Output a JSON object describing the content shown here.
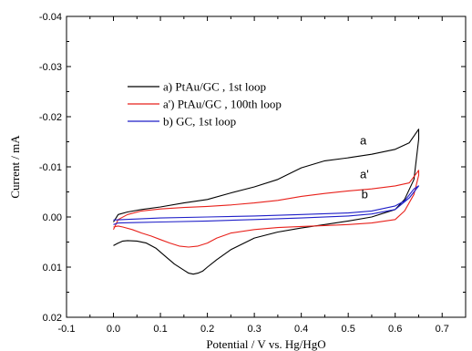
{
  "chart_data": {
    "type": "line",
    "xlabel": "Potential / V vs. Hg/HgO",
    "ylabel": "Current / mA",
    "xlim": [
      -0.1,
      0.75
    ],
    "ylim": [
      0.02,
      -0.04
    ],
    "y_axis_inverted": true,
    "xticks": [
      "-0.1",
      "0.0",
      "0.1",
      "0.2",
      "0.3",
      "0.4",
      "0.5",
      "0.6",
      "0.7"
    ],
    "yticks": [
      "-0.04",
      "-0.03",
      "-0.02",
      "-0.01",
      "0.00",
      "0.01",
      "0.02"
    ],
    "xtick_values": [
      -0.1,
      0.0,
      0.1,
      0.2,
      0.3,
      0.4,
      0.5,
      0.6,
      0.7
    ],
    "ytick_values": [
      -0.04,
      -0.03,
      -0.02,
      -0.01,
      0.0,
      0.01,
      0.02
    ],
    "grid": false,
    "legend_placement": "top-left",
    "series": [
      {
        "name": "a) PtAu/GC , 1st loop",
        "label": "a",
        "color": "#000000",
        "x": [
          0.0,
          0.01,
          0.03,
          0.06,
          0.1,
          0.15,
          0.2,
          0.25,
          0.3,
          0.35,
          0.4,
          0.45,
          0.5,
          0.55,
          0.6,
          0.63,
          0.65,
          0.65,
          0.64,
          0.62,
          0.6,
          0.55,
          0.5,
          0.45,
          0.4,
          0.35,
          0.3,
          0.25,
          0.22,
          0.2,
          0.19,
          0.18,
          0.17,
          0.16,
          0.15,
          0.13,
          0.11,
          0.09,
          0.07,
          0.05,
          0.03,
          0.02,
          0.01,
          0.0
        ],
        "y": [
          0.001,
          -0.0005,
          -0.001,
          -0.0015,
          -0.002,
          -0.0028,
          -0.0035,
          -0.0048,
          -0.006,
          -0.0075,
          -0.0098,
          -0.0112,
          -0.0118,
          -0.0125,
          -0.0135,
          -0.0148,
          -0.0175,
          -0.0155,
          -0.0075,
          -0.0035,
          -0.0015,
          0.0,
          0.0008,
          0.0015,
          0.0022,
          0.003,
          0.0042,
          0.0065,
          0.0085,
          0.01,
          0.0108,
          0.0112,
          0.0114,
          0.0112,
          0.0106,
          0.0094,
          0.0078,
          0.0062,
          0.0052,
          0.0048,
          0.0047,
          0.0048,
          0.0052,
          0.0057
        ]
      },
      {
        "name": "a') PtAu/GC , 100th loop",
        "label": "a'",
        "color": "#e8211b",
        "x": [
          0.0,
          0.01,
          0.03,
          0.06,
          0.1,
          0.15,
          0.2,
          0.25,
          0.3,
          0.35,
          0.4,
          0.45,
          0.5,
          0.55,
          0.6,
          0.63,
          0.65,
          0.65,
          0.64,
          0.62,
          0.6,
          0.55,
          0.5,
          0.45,
          0.4,
          0.35,
          0.3,
          0.25,
          0.22,
          0.2,
          0.18,
          0.16,
          0.14,
          0.12,
          0.1,
          0.08,
          0.06,
          0.04,
          0.02,
          0.01,
          0.0
        ],
        "y": [
          0.0025,
          0.0005,
          -0.0005,
          -0.0012,
          -0.0016,
          -0.0019,
          -0.0021,
          -0.0024,
          -0.0028,
          -0.0033,
          -0.0041,
          -0.0047,
          -0.0052,
          -0.0056,
          -0.0062,
          -0.0068,
          -0.0093,
          -0.0083,
          -0.0045,
          -0.0012,
          0.0005,
          0.0012,
          0.0015,
          0.0017,
          0.0019,
          0.0021,
          0.0025,
          0.0032,
          0.0042,
          0.0052,
          0.0058,
          0.006,
          0.0058,
          0.0052,
          0.0045,
          0.0038,
          0.0032,
          0.0025,
          0.002,
          0.0018,
          0.002
        ]
      },
      {
        "name": "b) GC, 1st loop",
        "label": "b",
        "color": "#1f1fc8",
        "x": [
          0.0,
          0.01,
          0.05,
          0.1,
          0.2,
          0.3,
          0.4,
          0.5,
          0.55,
          0.6,
          0.63,
          0.65,
          0.64,
          0.62,
          0.6,
          0.55,
          0.5,
          0.4,
          0.3,
          0.2,
          0.1,
          0.05,
          0.0
        ],
        "y": [
          0.0015,
          0.0012,
          0.0011,
          0.001,
          0.0008,
          0.0005,
          0.0002,
          -0.0002,
          -0.0006,
          -0.0015,
          -0.0038,
          -0.0062,
          -0.0056,
          -0.0032,
          -0.0022,
          -0.0012,
          -0.0008,
          -0.0005,
          -0.0002,
          0.0,
          0.0002,
          0.0004,
          0.0006
        ]
      }
    ]
  }
}
